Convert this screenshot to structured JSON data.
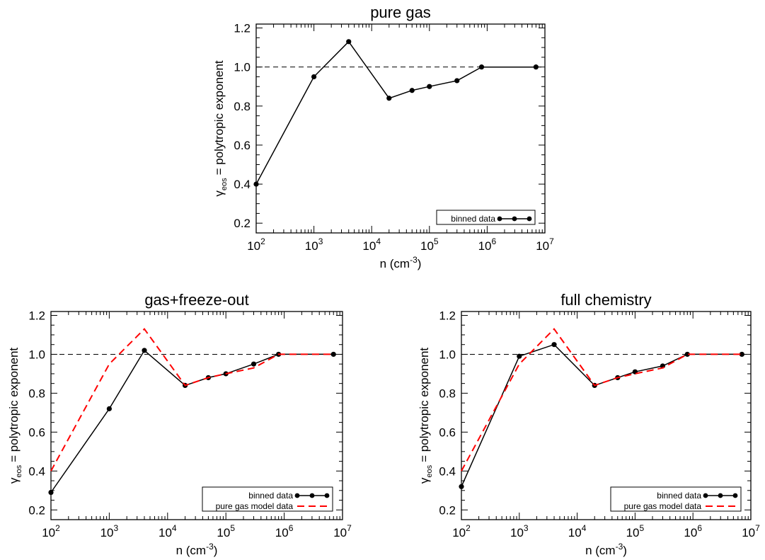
{
  "chart_data": [
    {
      "type": "line",
      "title": "pure gas",
      "xlabel": "n (cm",
      "xlabel_sup": "-3",
      "xlabel_close": ")",
      "ylabel": "= polytropic exponent",
      "ylabel_symbol": "γ",
      "ylabel_sub": "eos",
      "x_scale": "log",
      "xlim": [
        100,
        10000000
      ],
      "ylim": [
        0.15,
        1.22
      ],
      "x_ticks": [
        100,
        1000,
        10000,
        100000,
        1000000,
        10000000
      ],
      "x_tick_base": "10",
      "x_tick_exponents": [
        "2",
        "3",
        "4",
        "5",
        "6",
        "7"
      ],
      "y_ticks": [
        0.2,
        0.4,
        0.6,
        0.8,
        1.0,
        1.2
      ],
      "y_tick_labels": [
        "0.2",
        "0.4",
        "0.6",
        "0.8",
        "1.0",
        "1.2"
      ],
      "reference_line": 1.0,
      "grid": false,
      "legend_position": "bottom-right",
      "series": [
        {
          "name": "binned data",
          "color": "#000000",
          "style": "solid-dots",
          "x": [
            100,
            1000,
            4000,
            20000,
            50000,
            100000,
            300000,
            800000,
            7000000
          ],
          "y": [
            0.4,
            0.95,
            1.13,
            0.84,
            0.88,
            0.9,
            0.93,
            1.0,
            1.0
          ]
        }
      ]
    },
    {
      "type": "line",
      "title": "gas+freeze-out",
      "xlabel": "n (cm",
      "xlabel_sup": "-3",
      "xlabel_close": ")",
      "ylabel": "= polytropic exponent",
      "ylabel_symbol": "γ",
      "ylabel_sub": "eos",
      "x_scale": "log",
      "xlim": [
        100,
        10000000
      ],
      "ylim": [
        0.15,
        1.22
      ],
      "x_ticks": [
        100,
        1000,
        10000,
        100000,
        1000000,
        10000000
      ],
      "x_tick_base": "10",
      "x_tick_exponents": [
        "2",
        "3",
        "4",
        "5",
        "6",
        "7"
      ],
      "y_ticks": [
        0.2,
        0.4,
        0.6,
        0.8,
        1.0,
        1.2
      ],
      "y_tick_labels": [
        "0.2",
        "0.4",
        "0.6",
        "0.8",
        "1.0",
        "1.2"
      ],
      "reference_line": 1.0,
      "grid": false,
      "legend_position": "bottom-right",
      "series": [
        {
          "name": "binned data",
          "color": "#000000",
          "style": "solid-dots",
          "x": [
            100,
            1000,
            4000,
            20000,
            50000,
            100000,
            300000,
            800000,
            7000000
          ],
          "y": [
            0.29,
            0.72,
            1.02,
            0.84,
            0.88,
            0.9,
            0.95,
            1.0,
            1.0
          ]
        },
        {
          "name": "pure gas model data",
          "color": "#ff0000",
          "style": "dashed",
          "x": [
            100,
            1000,
            4000,
            20000,
            50000,
            100000,
            300000,
            800000,
            7000000
          ],
          "y": [
            0.4,
            0.95,
            1.13,
            0.84,
            0.88,
            0.9,
            0.93,
            1.0,
            1.0
          ]
        }
      ]
    },
    {
      "type": "line",
      "title": "full chemistry",
      "xlabel": "n (cm",
      "xlabel_sup": "-3",
      "xlabel_close": ")",
      "ylabel": "= polytropic exponent",
      "ylabel_symbol": "γ",
      "ylabel_sub": "eos",
      "x_scale": "log",
      "xlim": [
        100,
        10000000
      ],
      "ylim": [
        0.15,
        1.22
      ],
      "x_ticks": [
        100,
        1000,
        10000,
        100000,
        1000000,
        10000000
      ],
      "x_tick_base": "10",
      "x_tick_exponents": [
        "2",
        "3",
        "4",
        "5",
        "6",
        "7"
      ],
      "y_ticks": [
        0.2,
        0.4,
        0.6,
        0.8,
        1.0,
        1.2
      ],
      "y_tick_labels": [
        "0.2",
        "0.4",
        "0.6",
        "0.8",
        "1.0",
        "1.2"
      ],
      "reference_line": 1.0,
      "grid": false,
      "legend_position": "bottom-right",
      "series": [
        {
          "name": "binned data",
          "color": "#000000",
          "style": "solid-dots",
          "x": [
            100,
            1000,
            4000,
            20000,
            50000,
            100000,
            300000,
            800000,
            7000000
          ],
          "y": [
            0.32,
            0.99,
            1.05,
            0.84,
            0.88,
            0.91,
            0.94,
            1.0,
            1.0
          ]
        },
        {
          "name": "pure gas model data",
          "color": "#ff0000",
          "style": "dashed",
          "x": [
            100,
            1000,
            4000,
            20000,
            50000,
            100000,
            300000,
            800000,
            7000000
          ],
          "y": [
            0.4,
            0.95,
            1.13,
            0.84,
            0.88,
            0.9,
            0.93,
            1.0,
            1.0
          ]
        }
      ]
    }
  ]
}
